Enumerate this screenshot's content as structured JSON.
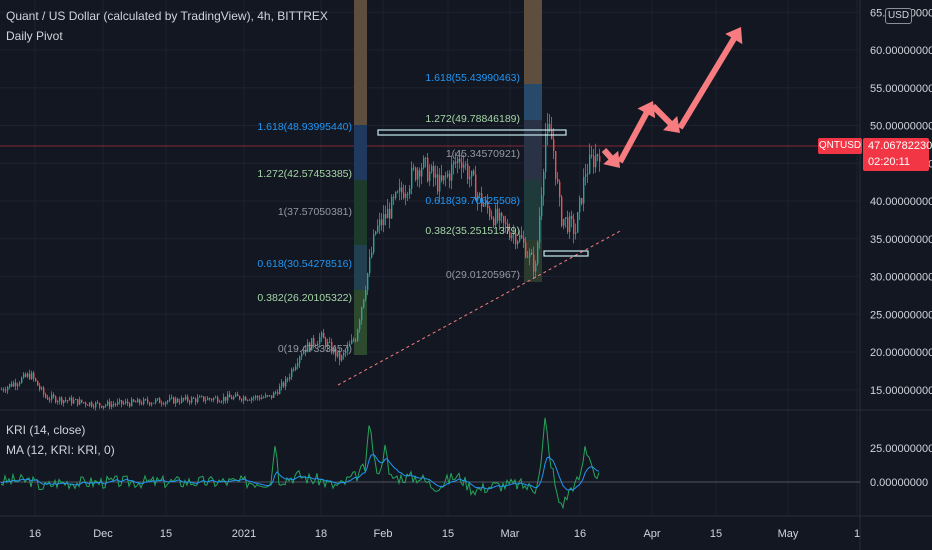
{
  "header": {
    "title": "Quant / US Dollar (calculated by TradingView), 4h, BITTREX",
    "indicator": "Daily Pivot",
    "currency_button": "USD"
  },
  "price_badge": {
    "symbol": "QNTUSD",
    "price": "47.06782230",
    "countdown": "02:20:11"
  },
  "oscillator": {
    "kri_label": "KRI (14, close)",
    "ma_label": "MA (12, KRI: KRI, 0)",
    "axis_labels": [
      "25.00000000",
      "0.00000000"
    ]
  },
  "price_axis": [
    "65.00000000",
    "60.00000000",
    "55.00000000",
    "50.00000000",
    "45.00000000",
    "40.00000000",
    "35.00000000",
    "30.00000000",
    "25.00000000",
    "20.00000000",
    "15.00000000"
  ],
  "time_axis": [
    "16",
    "Dec",
    "15",
    "2021",
    "18",
    "Feb",
    "15",
    "Mar",
    "16",
    "Apr",
    "15",
    "May",
    "1"
  ],
  "fib_left": [
    "1.618(48.93995440)",
    "1.272(42.57453385)",
    "1(37.57050381)",
    "0.618(30.54278516)",
    "0.382(26.20105322)",
    "0(19.47333457)"
  ],
  "fib_right": [
    "1.618(55.43990463)",
    "1.272(49.78846189)",
    "1(45.34570921)",
    "0.618(39.70625508)",
    "0.382(35.25151379)",
    "0(29.01205967)"
  ],
  "colors": {
    "background": "#131722",
    "up": "#26a69a",
    "down": "#ef5350",
    "accent_red": "#f23645",
    "fib_blue": "#2196f3",
    "fib_green": "#a5d6a7",
    "fib_gray": "#9598a1",
    "arrow": "#f77c80"
  }
}
